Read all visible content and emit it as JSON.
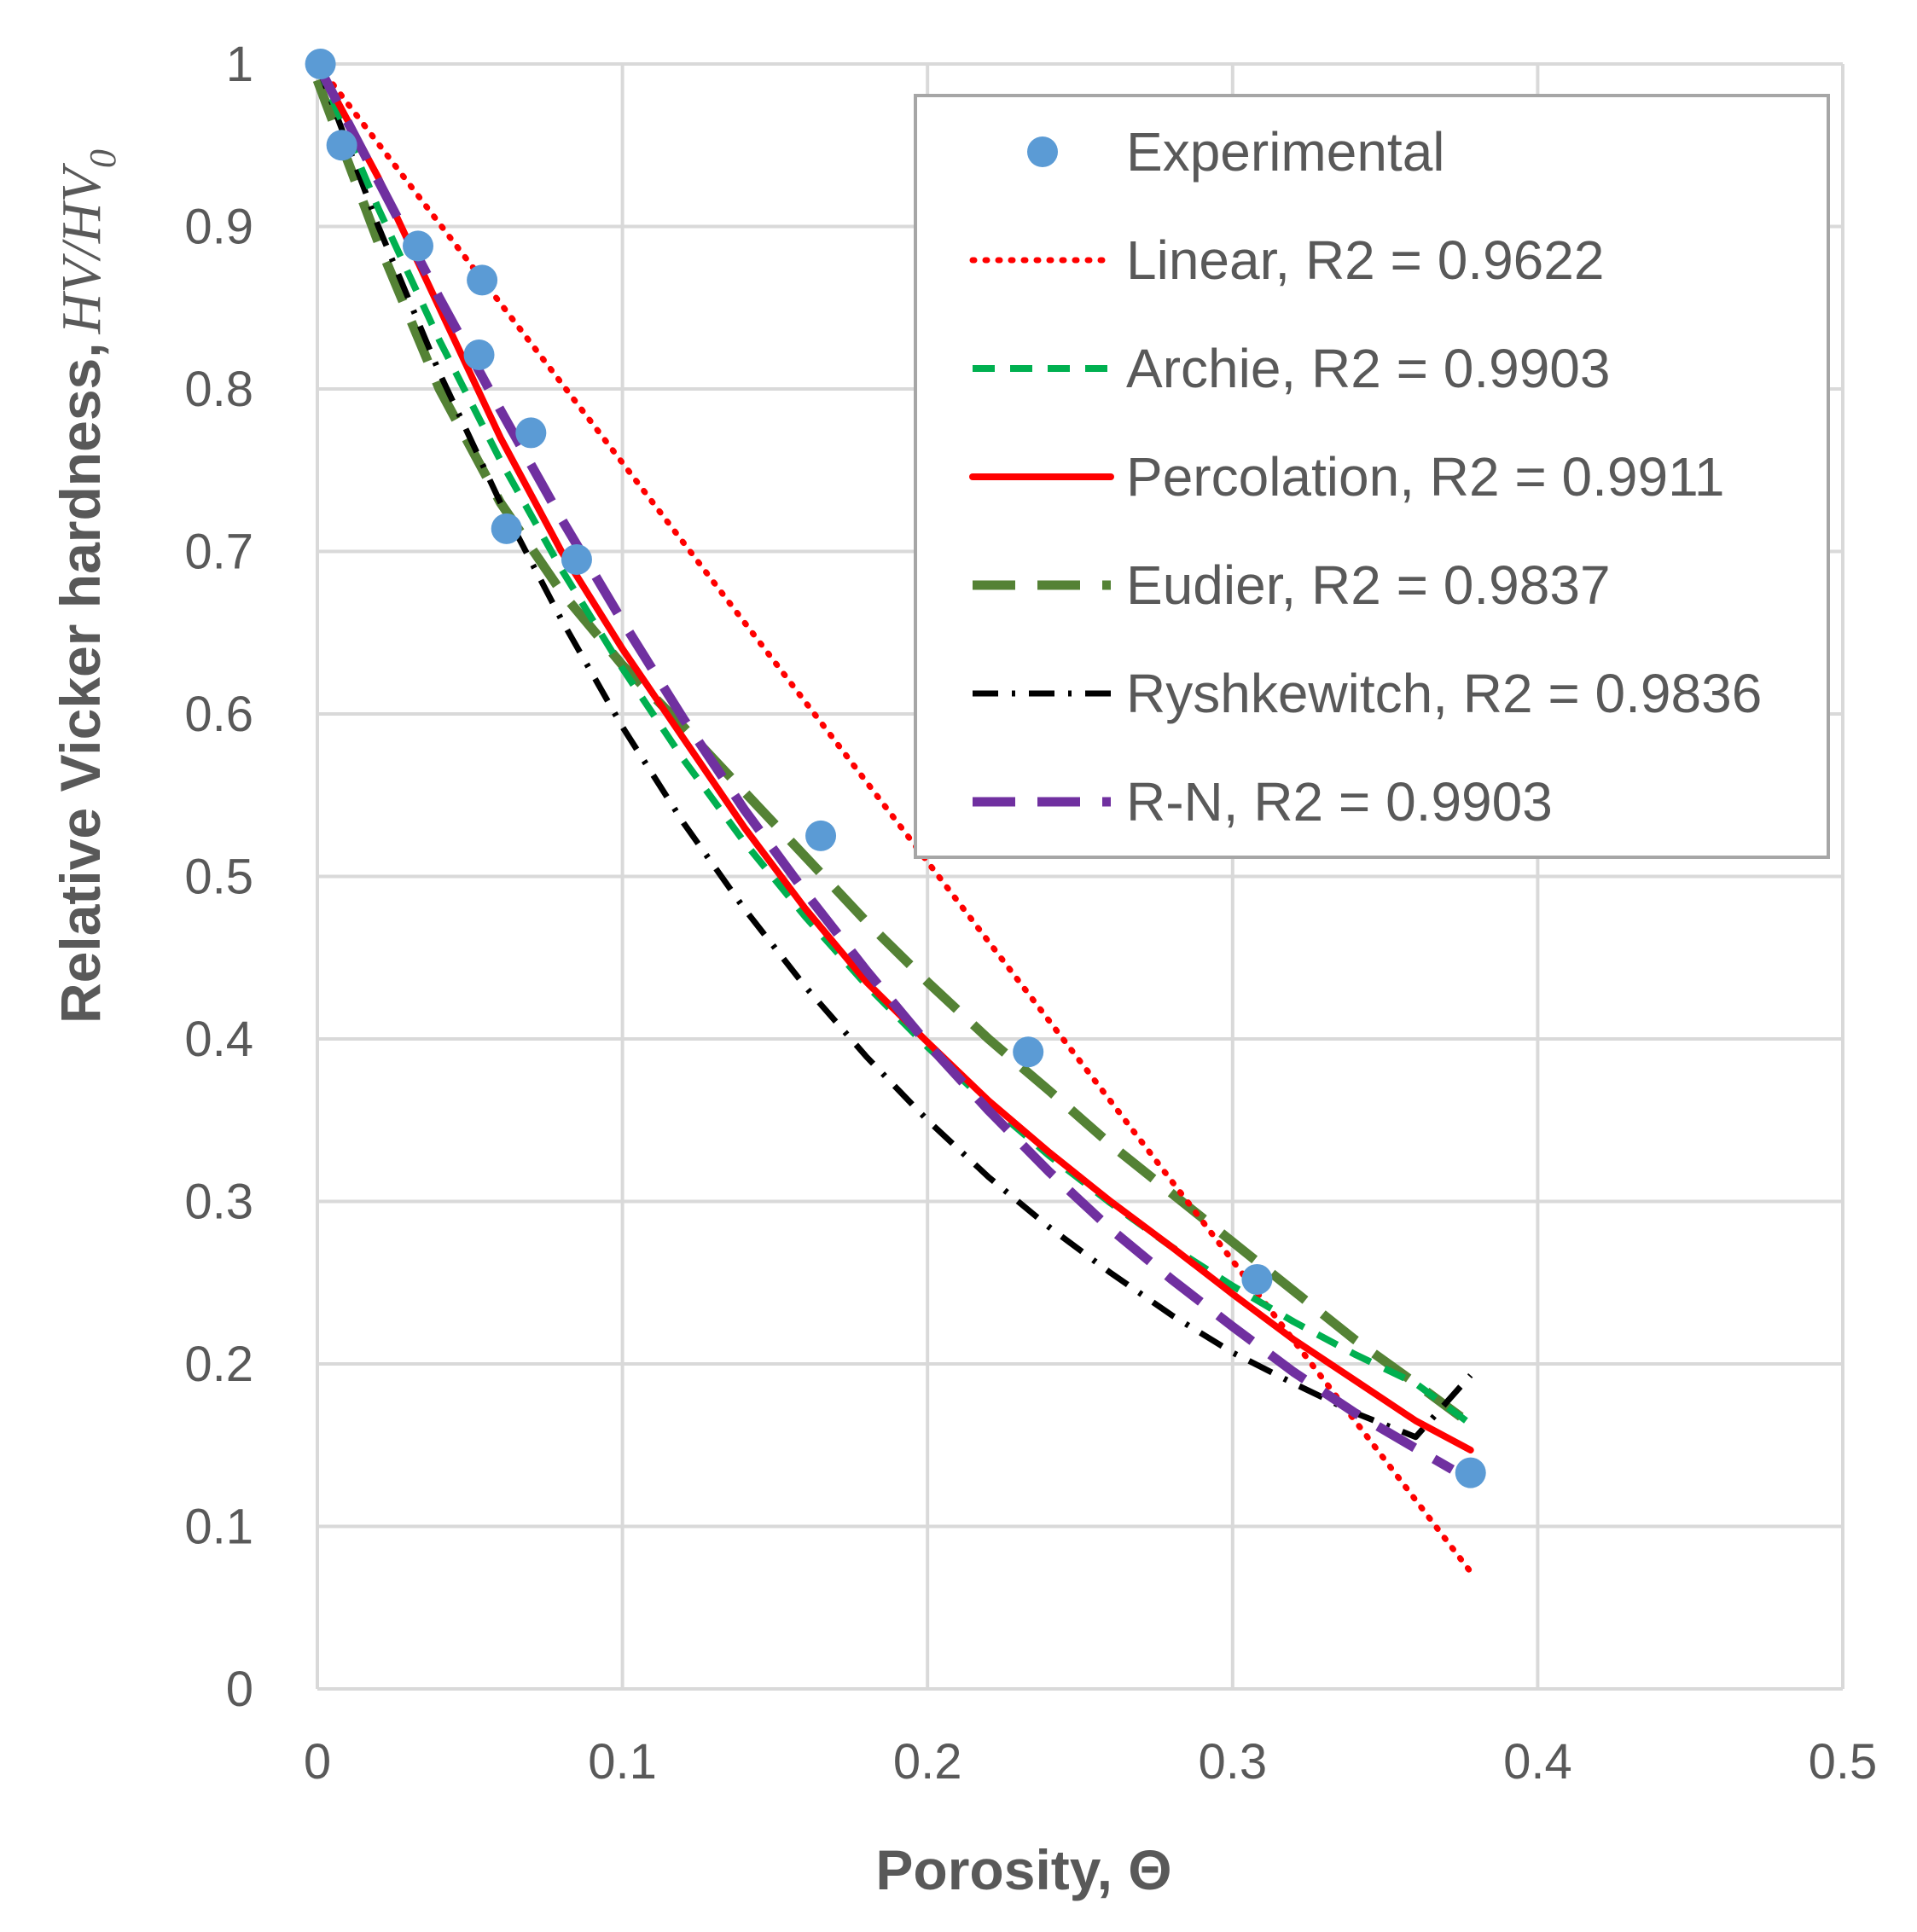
{
  "chart_data": {
    "type": "scatter",
    "xlabel": "Porosity, Θ",
    "ylabel": "Relative Vicker hardness,",
    "ylabel_math": "HV/HV",
    "ylabel_sub": "0",
    "xlim": [
      0,
      0.5
    ],
    "ylim": [
      0,
      1
    ],
    "xticks": [
      0,
      0.1,
      0.2,
      0.3,
      0.4,
      0.5
    ],
    "yticks": [
      0,
      0.1,
      0.2,
      0.3,
      0.4,
      0.5,
      0.6,
      0.7,
      0.8,
      0.9,
      1
    ],
    "xtick_labels": [
      "0",
      "0.1",
      "0.2",
      "0.3",
      "0.4",
      "0.5"
    ],
    "ytick_labels": [
      "0",
      "0.1",
      "0.2",
      "0.3",
      "0.4",
      "0.5",
      "0.6",
      "0.7",
      "0.8",
      "0.9",
      "1"
    ],
    "grid": true,
    "legend_position": "top-right",
    "series": [
      {
        "name": "Experimental",
        "kind": "markers",
        "color": "#5b9bd5",
        "x": [
          0.001,
          0.008,
          0.033,
          0.054,
          0.053,
          0.07,
          0.062,
          0.085,
          0.165,
          0.233,
          0.308,
          0.378
        ],
        "y": [
          1.0,
          0.95,
          0.888,
          0.867,
          0.821,
          0.773,
          0.714,
          0.695,
          0.525,
          0.392,
          0.252,
          0.133
        ]
      },
      {
        "name": "Linear, R2 = 0.9622",
        "kind": "line",
        "style": "dotted",
        "color": "#ff0000",
        "x": [
          0,
          0.378
        ],
        "y": [
          1.0,
          0.072
        ]
      },
      {
        "name": "Archie, R2 = 0.9903",
        "kind": "line",
        "style": "dashed",
        "color": "#00b050",
        "x": [
          0,
          0.02,
          0.04,
          0.06,
          0.08,
          0.1,
          0.12,
          0.14,
          0.16,
          0.18,
          0.2,
          0.22,
          0.24,
          0.26,
          0.28,
          0.3,
          0.32,
          0.34,
          0.36,
          0.378
        ],
        "y": [
          1.0,
          0.911,
          0.83,
          0.756,
          0.689,
          0.628,
          0.572,
          0.521,
          0.475,
          0.433,
          0.395,
          0.36,
          0.328,
          0.299,
          0.272,
          0.248,
          0.226,
          0.206,
          0.188,
          0.163
        ]
      },
      {
        "name": "Percolation, R2 = 0.9911",
        "kind": "line",
        "style": "solid",
        "color": "#ff0000",
        "x": [
          0,
          0.02,
          0.04,
          0.06,
          0.08,
          0.1,
          0.12,
          0.14,
          0.16,
          0.18,
          0.2,
          0.22,
          0.24,
          0.26,
          0.28,
          0.3,
          0.32,
          0.34,
          0.36,
          0.378
        ],
        "y": [
          1.0,
          0.93,
          0.85,
          0.77,
          0.7,
          0.64,
          0.585,
          0.53,
          0.48,
          0.435,
          0.398,
          0.362,
          0.33,
          0.3,
          0.272,
          0.243,
          0.215,
          0.19,
          0.165,
          0.147
        ]
      },
      {
        "name": "Eudier, R2 = 0.9837",
        "kind": "line",
        "style": "long-dashed",
        "color": "#548235",
        "x": [
          0,
          0.02,
          0.04,
          0.06,
          0.08,
          0.1,
          0.12,
          0.14,
          0.16,
          0.18,
          0.2,
          0.22,
          0.24,
          0.26,
          0.28,
          0.3,
          0.32,
          0.34,
          0.36,
          0.378
        ],
        "y": [
          0.99,
          0.89,
          0.8,
          0.73,
          0.675,
          0.63,
          0.592,
          0.552,
          0.512,
          0.472,
          0.435,
          0.4,
          0.368,
          0.335,
          0.305,
          0.275,
          0.245,
          0.215,
          0.188,
          0.163
        ]
      },
      {
        "name": "Ryshkewitch, R2 = 0.9836",
        "kind": "line",
        "style": "dash-dot",
        "color": "#000000",
        "x": [
          0,
          0.02,
          0.04,
          0.06,
          0.08,
          0.1,
          0.12,
          0.14,
          0.16,
          0.18,
          0.2,
          0.22,
          0.24,
          0.26,
          0.28,
          0.3,
          0.32,
          0.34,
          0.36,
          0.378
        ],
        "y": [
          1.0,
          0.9,
          0.81,
          0.73,
          0.658,
          0.592,
          0.533,
          0.48,
          0.432,
          0.389,
          0.35,
          0.315,
          0.284,
          0.256,
          0.23,
          0.207,
          0.188,
          0.17,
          0.155,
          0.193
        ]
      },
      {
        "name": "R-N, R2 = 0.9903",
        "kind": "line",
        "style": "long-dashed",
        "color": "#7030a0",
        "x": [
          0,
          0.02,
          0.04,
          0.06,
          0.08,
          0.1,
          0.12,
          0.14,
          0.16,
          0.18,
          0.2,
          0.22,
          0.24,
          0.26,
          0.28,
          0.3,
          0.32,
          0.34,
          0.36,
          0.372
        ],
        "y": [
          1.0,
          0.928,
          0.856,
          0.787,
          0.72,
          0.657,
          0.597,
          0.541,
          0.49,
          0.442,
          0.397,
          0.356,
          0.318,
          0.283,
          0.252,
          0.223,
          0.195,
          0.17,
          0.148,
          0.135
        ]
      }
    ]
  }
}
